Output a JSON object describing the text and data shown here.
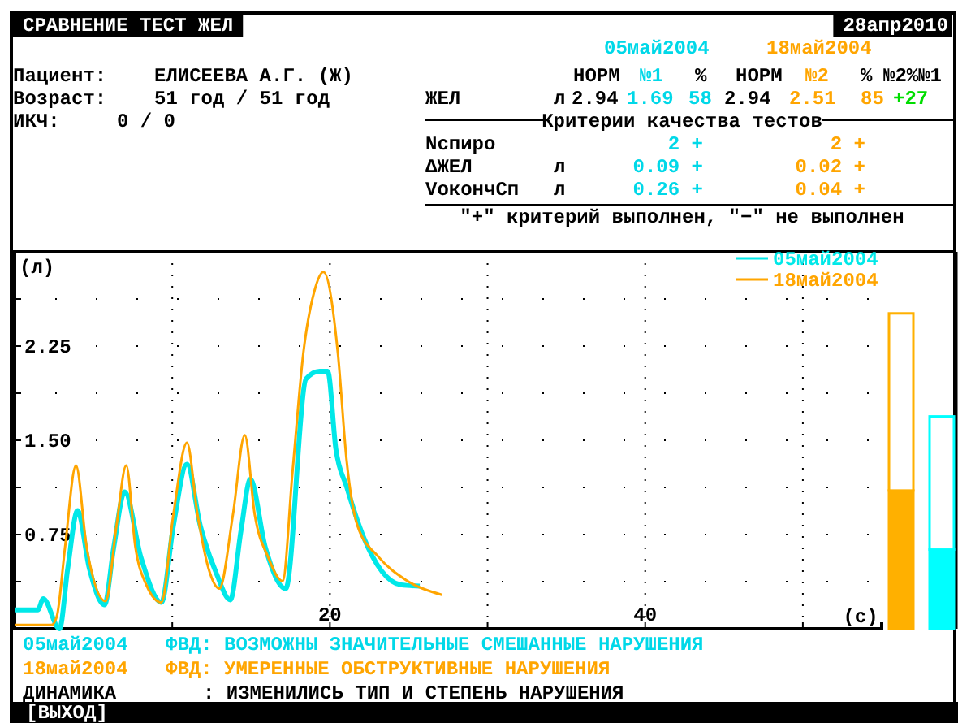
{
  "chart_data": [
    {
      "type": "line",
      "title": "СРАВНЕНИЕ  ТЕСТ ЖЕЛ",
      "subtitle": "28апр2010",
      "xlabel": "(с)",
      "ylabel": "(л)",
      "xlim": [
        0,
        55
      ],
      "xticks": [
        {
          "value": 10,
          "label": null
        },
        20,
        {
          "value": 30,
          "label": null
        },
        40,
        {
          "value": 50,
          "label": null
        }
      ],
      "ylim": [
        0,
        3
      ],
      "yticks": [
        {
          "value": 0.375,
          "label": null
        },
        0.75,
        {
          "value": 1.125,
          "label": null
        },
        {
          "value": 1.5,
          "label": "1.50"
        },
        {
          "value": 1.875,
          "label": null
        },
        2.25,
        {
          "value": 2.625,
          "label": null
        }
      ],
      "grid": true,
      "legend": "top right",
      "marker": "none",
      "line_style": "solid",
      "series": [
        {
          "name": "05май2004",
          "color": "#00e8e8",
          "x": [
            0,
            1.47,
            1.82,
            2.85,
            3.37,
            3.99,
            4.74,
            5.7,
            6.29,
            6.98,
            8.01,
            9.31,
            10.07,
            10.93,
            11.78,
            12.8,
            13.68,
            14.36,
            14.95,
            15.9,
            17.2,
            18.49,
            19.35,
            19.86,
            20.38,
            21.06,
            22.1,
            24.5,
            25.7
          ],
          "values": [
            0.15,
            0.15,
            0.24,
            0.0,
            0.48,
            0.94,
            0.48,
            0.19,
            0.65,
            1.09,
            0.57,
            0.21,
            0.82,
            1.31,
            0.82,
            0.44,
            0.23,
            0.78,
            1.19,
            0.65,
            0.32,
            1.99,
            2.05,
            2.05,
            1.43,
            1.13,
            0.74,
            0.35,
            0.34
          ]
        },
        {
          "name": "18май2004",
          "color": "#ffa500",
          "x": [
            0,
            2.34,
            2.68,
            3.2,
            3.89,
            4.57,
            5.77,
            6.46,
            7.08,
            7.66,
            8.35,
            9.31,
            10.07,
            10.93,
            11.6,
            12.3,
            12.99,
            13.85,
            14.6,
            15.23,
            16.08,
            17.0,
            17.63,
            18.32,
            19.0,
            19.59,
            20.5,
            21.06,
            21.75,
            23.1,
            24.8,
            27.1
          ],
          "values": [
            0.03,
            0.03,
            0.1,
            0.65,
            1.3,
            0.65,
            0.22,
            0.82,
            1.3,
            0.65,
            0.35,
            0.21,
            0.91,
            1.48,
            0.91,
            0.48,
            0.32,
            0.91,
            1.54,
            0.91,
            0.57,
            0.38,
            1.25,
            2.2,
            2.68,
            2.84,
            2.2,
            1.34,
            0.82,
            0.57,
            0.39,
            0.27
          ]
        }
      ],
      "annotations": [
        "05май2004",
        "18май2004",
        "Пациент:",
        "ЕЛИСЕЕВА А.Г. (Ж)",
        "НОРМ",
        "№1",
        "%",
        "НОРМ",
        "№2",
        "%",
        "№2%№1",
        "Возраст:",
        "51 год / 51 год",
        "ЖЕЛ",
        "л",
        "2.94",
        "1.69",
        "58",
        "2.94",
        "2.51",
        "85",
        "+27",
        "ИКЧ:",
        "0 / 0",
        "Критерии качества тестов",
        "Nспиро",
        "2 +",
        "2 +",
        "ΔЖЕЛ",
        "л",
        "0.09 +",
        "0.02 +",
        "VокончСп",
        "л",
        "0.26 +",
        "0.04 +",
        "\"+\" критерий выполнен,  \"−\" не выполнен",
        "05май2004",
        "ФВД: ВОЗМОЖНЫ ЗНАЧИТЕЛЬНЫЕ СМЕШАННЫЕ НАРУШЕНИЯ",
        "18май2004",
        "ФВД: УМЕРЕННЫЕ ОБСТРУКТИВНЫЕ НАРУШЕНИЯ",
        "ДИНАМИКА",
        ": ИЗМЕНИЛИСЬ ТИП И СТЕПЕНЬ НАРУШЕНИЯ",
        "[ВЫХОД]"
      ]
    },
    {
      "type": "bar",
      "stacked": true,
      "categories": [
        null,
        null
      ],
      "ylim": [
        0,
        3
      ],
      "tick_labels": false,
      "series": [
        {
          "colors": [
            "#ffb000",
            "#00ffff"
          ],
          "values": [
            1.1,
            0.63
          ]
        },
        {
          "colors": [
            "#ffffff",
            "#ffffff"
          ],
          "values": [
            1.41,
            1.06
          ]
        }
      ]
    }
  ]
}
